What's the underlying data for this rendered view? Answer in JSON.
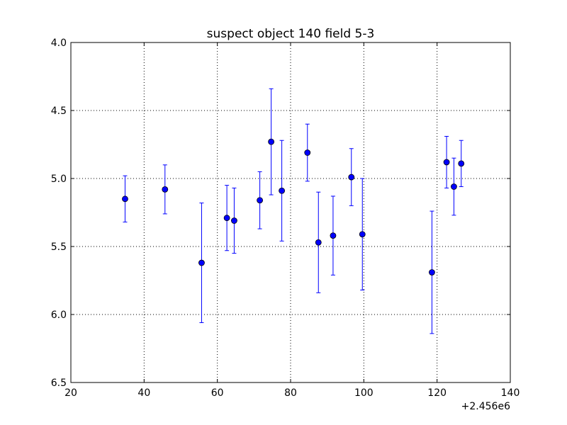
{
  "chart_data": {
    "type": "scatter",
    "title": "suspect object 140 field 5-3",
    "xlabel": "",
    "ylabel": "",
    "x_offset_label": "+2.456e6",
    "xlim": [
      20,
      140
    ],
    "ylim": [
      6.5,
      4.0
    ],
    "y_inverted": true,
    "grid": true,
    "x_ticks": [
      "20",
      "40",
      "60",
      "80",
      "100",
      "120",
      "140"
    ],
    "y_ticks": [
      "4.0",
      "4.5",
      "5.0",
      "5.5",
      "6.0",
      "6.5"
    ],
    "series": [
      {
        "color": "#0000ff",
        "marker": "circle",
        "error_bars": true,
        "points": [
          {
            "x": 34.8,
            "y": 5.15,
            "err": 0.17
          },
          {
            "x": 45.7,
            "y": 5.08,
            "err": 0.18
          },
          {
            "x": 55.7,
            "y": 5.62,
            "err": 0.44
          },
          {
            "x": 62.6,
            "y": 5.29,
            "err": 0.24
          },
          {
            "x": 64.6,
            "y": 5.31,
            "err": 0.24
          },
          {
            "x": 71.6,
            "y": 5.16,
            "err": 0.21
          },
          {
            "x": 74.7,
            "y": 4.73,
            "err": 0.39
          },
          {
            "x": 77.6,
            "y": 5.09,
            "err": 0.37
          },
          {
            "x": 84.6,
            "y": 4.81,
            "err": 0.21
          },
          {
            "x": 87.6,
            "y": 5.47,
            "err": 0.37
          },
          {
            "x": 91.6,
            "y": 5.42,
            "err": 0.29
          },
          {
            "x": 96.6,
            "y": 4.99,
            "err": 0.21
          },
          {
            "x": 99.6,
            "y": 5.41,
            "err": 0.41
          },
          {
            "x": 118.6,
            "y": 5.69,
            "err": 0.45
          },
          {
            "x": 122.6,
            "y": 4.88,
            "err": 0.19
          },
          {
            "x": 124.6,
            "y": 5.06,
            "err": 0.21
          },
          {
            "x": 126.6,
            "y": 4.89,
            "err": 0.17
          }
        ]
      }
    ]
  }
}
